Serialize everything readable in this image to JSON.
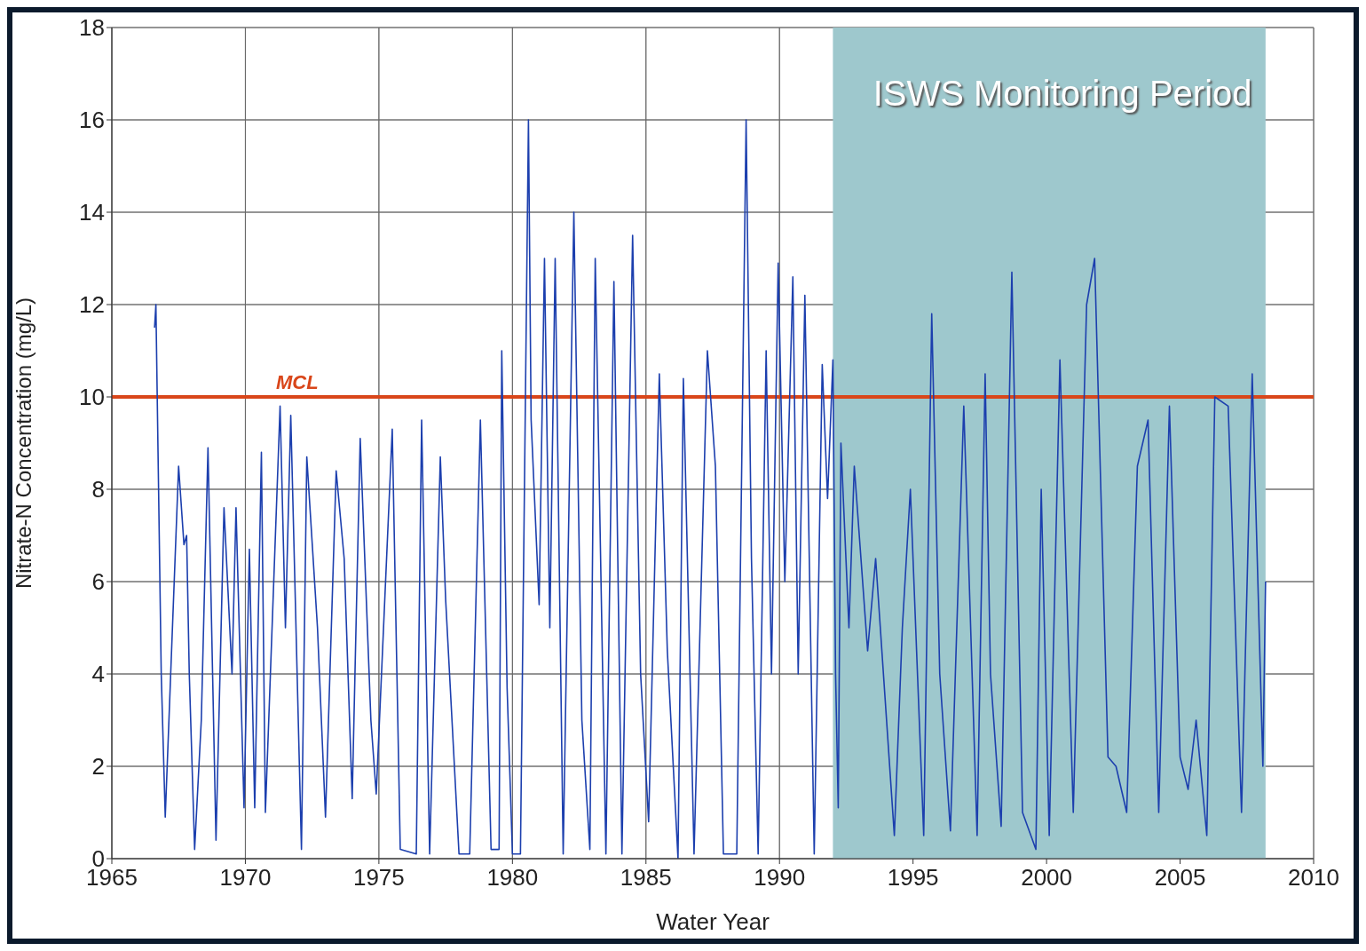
{
  "chart_data": {
    "type": "line",
    "xlabel": "Water Year",
    "ylabel": "Nitrate-N Concentration (mg/L)",
    "xlim": [
      1965,
      2010
    ],
    "xticks": [
      1965,
      1970,
      1975,
      1980,
      1985,
      1990,
      1995,
      2000,
      2005,
      2010
    ],
    "ylim": [
      0,
      18
    ],
    "yticks": [
      0,
      2,
      4,
      6,
      8,
      10,
      12,
      14,
      16,
      18
    ],
    "grid": true,
    "marker": "none",
    "line_style": "solid",
    "series": [
      {
        "color": "#1c3fae",
        "x": [
          1966.6,
          1966.65,
          1966.75,
          1966.85,
          1967.0,
          1967.5,
          1967.7,
          1967.8,
          1967.9,
          1968.1,
          1968.35,
          1968.6,
          1968.9,
          1969.2,
          1969.5,
          1969.65,
          1969.95,
          1970.15,
          1970.35,
          1970.6,
          1970.75,
          1971.3,
          1971.5,
          1971.7,
          1972.1,
          1972.3,
          1972.7,
          1973.0,
          1973.4,
          1973.7,
          1974.0,
          1974.3,
          1974.7,
          1974.9,
          1975.5,
          1975.8,
          1976.4,
          1976.6,
          1976.9,
          1977.3,
          1977.5,
          1978.0,
          1978.4,
          1978.8,
          1979.2,
          1979.5,
          1979.6,
          1979.8,
          1980.0,
          1980.3,
          1980.6,
          1980.7,
          1981.0,
          1981.2,
          1981.4,
          1981.6,
          1981.9,
          1982.3,
          1982.6,
          1982.9,
          1983.1,
          1983.5,
          1983.8,
          1984.1,
          1984.5,
          1984.8,
          1985.1,
          1985.5,
          1985.8,
          1986.2,
          1986.4,
          1986.8,
          1987.3,
          1987.6,
          1987.9,
          1988.4,
          1988.75,
          1988.95,
          1989.2,
          1989.5,
          1989.7,
          1989.95,
          1990.2,
          1990.5,
          1990.7,
          1990.95,
          1991.3,
          1991.6,
          1991.8,
          1992.0,
          1992.1,
          1992.2,
          1992.3,
          1992.6,
          1992.8,
          1993.3,
          1993.6,
          1994.3,
          1994.6,
          1994.9,
          1995.4,
          1995.7,
          1996.0,
          1996.4,
          1996.9,
          1997.4,
          1997.7,
          1997.9,
          1998.3,
          1998.7,
          1999.1,
          1999.6,
          1999.8,
          2000.1,
          2000.5,
          2001.0,
          2001.5,
          2001.8,
          2002.3,
          2002.6,
          2003.0,
          2003.4,
          2003.8,
          2004.2,
          2004.6,
          2005.0,
          2005.3,
          2005.6,
          2006.0,
          2006.3,
          2006.8,
          2007.3,
          2007.7,
          2008.1,
          2008.2
        ],
        "values": [
          11.5,
          12,
          8,
          4,
          0.9,
          8.5,
          6.8,
          7,
          4,
          0.2,
          3,
          8.9,
          0.4,
          7.6,
          4,
          7.6,
          1.1,
          6.7,
          1.1,
          8.8,
          1,
          9.8,
          5,
          9.6,
          0.2,
          8.7,
          5,
          0.9,
          8.4,
          6.5,
          1.3,
          9.1,
          3,
          1.4,
          9.3,
          0.2,
          0.1,
          9.5,
          0.1,
          8.7,
          5.6,
          0.1,
          0.1,
          9.5,
          0.2,
          0.2,
          11,
          3.7,
          0.1,
          0.1,
          16,
          9.5,
          5.5,
          13,
          5,
          13,
          0.1,
          14,
          3,
          0.2,
          13,
          0.1,
          12.5,
          0.1,
          13.5,
          4,
          0.8,
          10.5,
          4.5,
          0,
          10.4,
          0.1,
          11,
          8.5,
          0.1,
          0.1,
          16,
          6.5,
          0.1,
          11,
          4,
          12.9,
          6,
          12.6,
          4,
          12.2,
          0.1,
          10.7,
          7.8,
          10.8,
          4,
          1.1,
          9,
          5,
          8.5,
          4.5,
          6.5,
          0.5,
          5,
          8,
          0.5,
          11.8,
          4,
          0.6,
          9.8,
          0.5,
          10.5,
          4,
          0.7,
          12.7,
          1,
          0.2,
          8,
          0.5,
          10.8,
          1,
          12,
          13,
          2.2,
          2,
          1,
          8.5,
          9.5,
          1,
          9.8,
          2.2,
          1.5,
          3,
          0.5,
          10,
          9.8,
          1,
          10.5,
          2,
          6
        ]
      }
    ],
    "ref_lines": [
      {
        "axis": "y",
        "value": 10,
        "label": "MCL",
        "color": "#d9461a"
      }
    ],
    "bands": [
      {
        "axis": "x",
        "from": 1992,
        "to": 2008.2,
        "label": "ISWS Monitoring Period",
        "color": "#9ec8cd"
      }
    ]
  }
}
